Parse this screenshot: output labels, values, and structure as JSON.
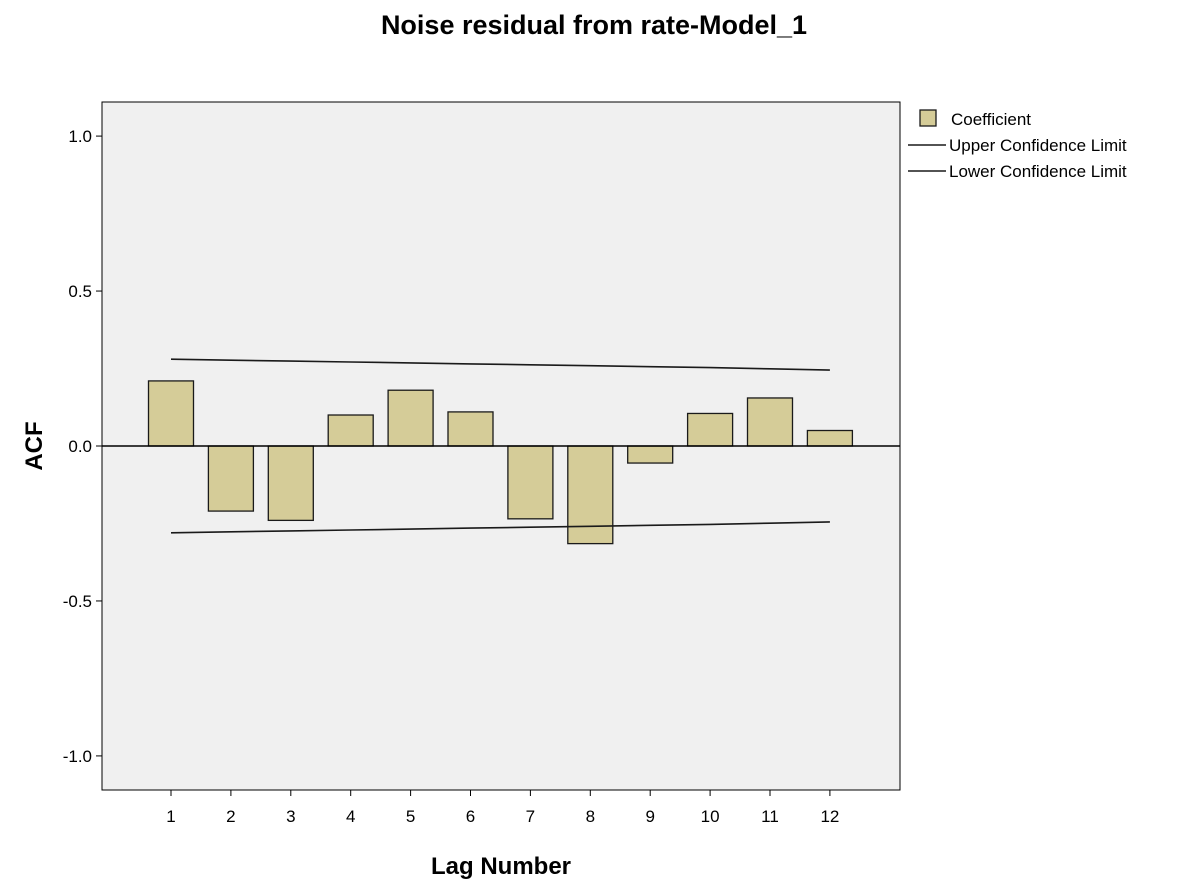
{
  "chart_data": {
    "type": "bar",
    "title": "Noise residual from rate-Model_1",
    "xlabel": "Lag Number",
    "ylabel": "ACF",
    "categories": [
      "1",
      "2",
      "3",
      "4",
      "5",
      "6",
      "7",
      "8",
      "9",
      "10",
      "11",
      "12"
    ],
    "series": [
      {
        "name": "Coefficient",
        "values": [
          0.21,
          -0.21,
          -0.24,
          0.1,
          0.18,
          0.11,
          -0.235,
          -0.315,
          -0.055,
          0.105,
          0.155,
          0.05
        ]
      },
      {
        "name": "Upper Confidence Limit",
        "values": [
          0.28,
          0.277,
          0.274,
          0.271,
          0.268,
          0.265,
          0.262,
          0.259,
          0.256,
          0.253,
          0.249,
          0.245
        ]
      },
      {
        "name": "Lower Confidence Limit",
        "values": [
          -0.28,
          -0.277,
          -0.274,
          -0.271,
          -0.268,
          -0.265,
          -0.262,
          -0.259,
          -0.256,
          -0.253,
          -0.249,
          -0.245
        ]
      }
    ],
    "yticks": [
      "1.0",
      "0.5",
      "0.0",
      "-0.5",
      "-1.0"
    ],
    "ytick_values": [
      1.0,
      0.5,
      0.0,
      -0.5,
      -1.0
    ],
    "ylim": [
      -1.11,
      1.11
    ],
    "grid": false,
    "legend_position": "top-right",
    "colors": {
      "bar_fill": "#d5cc98",
      "bar_stroke": "#1a1a1a",
      "plot_background": "#f0f0f0",
      "line": "#1a1a1a"
    }
  }
}
